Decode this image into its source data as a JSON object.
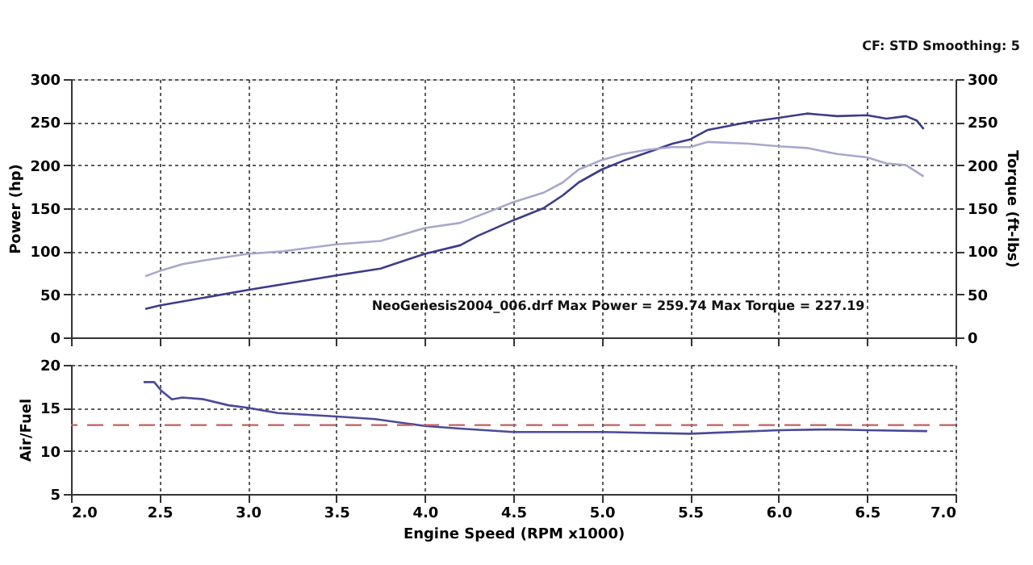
{
  "chart_data": [
    {
      "type": "line",
      "ylabel": "Power (hp)",
      "y2label": "Torque (ft-lbs)",
      "annotations": [
        "CF: STD  Smoothing: 5",
        "NeoGenesis2004_006.drf Max Power = 259.74     Max Torque = 227.19"
      ],
      "series": [
        {
          "color": "#3c3c8c",
          "x": [
            2.42,
            2.5,
            3.0,
            3.5,
            3.75,
            4.0,
            4.2,
            4.3,
            4.5,
            4.67,
            4.78,
            4.87,
            5.0,
            5.12,
            5.26,
            5.4,
            5.5,
            5.6,
            5.7,
            5.83,
            6.0,
            6.16,
            6.33,
            6.5,
            6.61,
            6.72,
            6.78,
            6.82
          ],
          "values": [
            33,
            37,
            55,
            72,
            80,
            97,
            107,
            118,
            136,
            150,
            165,
            180,
            195,
            205,
            215,
            225,
            230,
            241,
            245,
            250,
            255,
            260,
            257,
            258,
            254,
            257,
            252,
            242
          ]
        },
        {
          "color": "#a8a8cc",
          "axis": "y2",
          "x": [
            2.42,
            2.5,
            2.63,
            2.77,
            3.0,
            3.2,
            3.5,
            3.75,
            4.0,
            4.2,
            4.3,
            4.5,
            4.67,
            4.78,
            4.87,
            5.0,
            5.12,
            5.26,
            5.4,
            5.5,
            5.6,
            5.83,
            6.0,
            6.16,
            6.33,
            6.5,
            6.61,
            6.72,
            6.82
          ],
          "values": [
            71,
            77,
            85,
            90,
            97,
            100,
            108,
            112,
            127,
            133,
            141,
            157,
            168,
            180,
            195,
            206,
            213,
            218,
            221,
            221,
            227,
            225,
            222,
            220,
            213,
            209,
            202,
            200,
            187
          ]
        }
      ],
      "xlim": [
        2.0,
        7.0
      ],
      "xticks": [
        {
          "value": 2.0,
          "label": null
        },
        {
          "value": 2.5,
          "label": null
        },
        {
          "value": 3.0,
          "label": null
        },
        {
          "value": 3.5,
          "label": null
        },
        {
          "value": 4.0,
          "label": null
        },
        {
          "value": 4.5,
          "label": null
        },
        {
          "value": 5.0,
          "label": null
        },
        {
          "value": 5.5,
          "label": null
        },
        {
          "value": 6.0,
          "label": null
        },
        {
          "value": 6.5,
          "label": null
        },
        {
          "value": 7.0,
          "label": null
        }
      ],
      "ylim": [
        0,
        300
      ],
      "yticks": [
        0,
        50,
        100,
        150,
        200,
        250,
        300
      ],
      "y2lim": [
        0,
        300
      ],
      "y2ticks": [
        0,
        50,
        100,
        150,
        200,
        250,
        300
      ],
      "grid": true,
      "tick_labels": "y"
    },
    {
      "type": "line",
      "xlabel": "Engine Speed (RPM x1000)",
      "ylabel": "Air/Fuel",
      "series": [
        {
          "color": "#4a4a9a",
          "x": [
            2.41,
            2.47,
            2.51,
            2.57,
            2.63,
            2.75,
            2.89,
            3.0,
            3.17,
            3.5,
            3.72,
            4.0,
            4.2,
            4.5,
            5.0,
            5.5,
            6.0,
            6.28,
            6.5,
            6.84
          ],
          "values": [
            18.0,
            18.0,
            17.0,
            16.0,
            16.2,
            16.0,
            15.3,
            15.0,
            14.4,
            14.0,
            13.7,
            12.9,
            12.6,
            12.2,
            12.2,
            12.0,
            12.4,
            12.5,
            12.4,
            12.3
          ]
        }
      ],
      "ref_lines": [
        {
          "axis": "y",
          "value": 13,
          "color": "#c06060",
          "line_style": "dashed"
        }
      ],
      "xlim": [
        2.0,
        7.0
      ],
      "xticks": [
        {
          "value": 2.0,
          "label": "2.0"
        },
        {
          "value": 2.5,
          "label": "2.5"
        },
        {
          "value": 3.0,
          "label": "3.0"
        },
        {
          "value": 3.5,
          "label": "3.5"
        },
        {
          "value": 4.0,
          "label": "4.0"
        },
        {
          "value": 4.5,
          "label": "4.5"
        },
        {
          "value": 5.0,
          "label": "5.0"
        },
        {
          "value": 5.5,
          "label": "5.5"
        },
        {
          "value": 6.0,
          "label": "6.0"
        },
        {
          "value": 6.5,
          "label": "6.5"
        },
        {
          "value": 7.0,
          "label": "7.0"
        }
      ],
      "ylim": [
        5,
        20
      ],
      "yticks": [
        5,
        10,
        15,
        20
      ],
      "grid": true
    }
  ]
}
